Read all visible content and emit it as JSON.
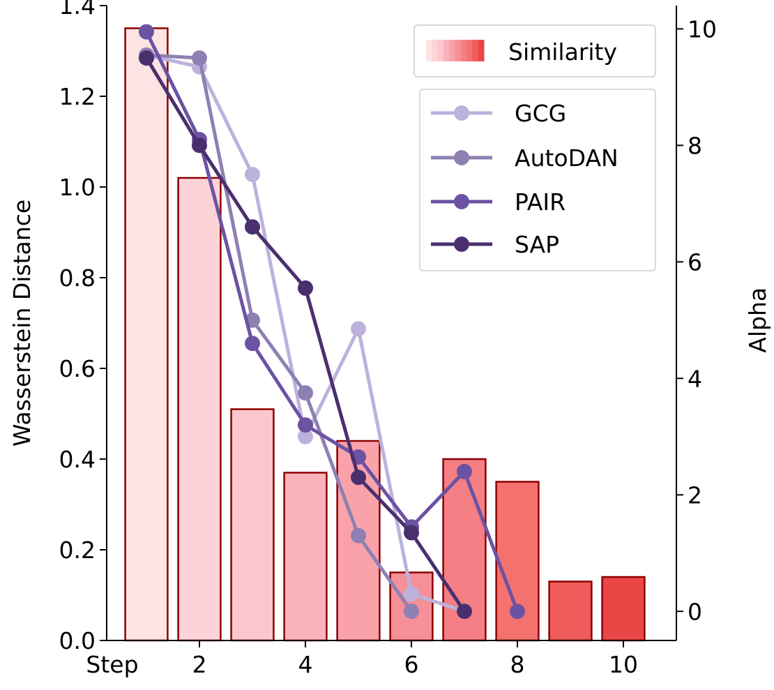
{
  "chart_data": {
    "type": "bar",
    "xlabel_inline": "Step",
    "ylabel": "Wasserstein Distance",
    "ylabel_right": "Alpha",
    "xlim": [
      0.25,
      11.0
    ],
    "ylim": [
      0.0,
      1.4
    ],
    "ylim_right": [
      -0.5,
      10.4
    ],
    "x_ticks": [
      2,
      4,
      6,
      8,
      10
    ],
    "y_ticks": [
      0.0,
      0.2,
      0.4,
      0.6,
      0.8,
      1.0,
      1.2,
      1.4
    ],
    "y_ticks_right": [
      0,
      2,
      4,
      6,
      8,
      10
    ],
    "bars": {
      "name": "Similarity",
      "x": [
        1,
        2,
        3,
        4,
        5,
        6,
        7,
        8,
        9,
        10
      ],
      "values": [
        1.35,
        1.02,
        0.51,
        0.37,
        0.44,
        0.15,
        0.4,
        0.35,
        0.13,
        0.14
      ],
      "colors": [
        "#fde3e3",
        "#fcd4d8",
        "#fcc7cd",
        "#fab3bb",
        "#f9a2aa",
        "#f68f98",
        "#f47f85",
        "#f3726f",
        "#ef5c5c",
        "#ea4646"
      ],
      "edge_color": "#8b0000"
    },
    "series": [
      {
        "name": "GCG",
        "color": "#bcb2dc",
        "x": [
          1,
          2,
          3,
          4,
          5,
          6,
          7
        ],
        "values": [
          9.55,
          9.35,
          7.5,
          3.0,
          4.85,
          0.3,
          0.0
        ]
      },
      {
        "name": "AutoDAN",
        "color": "#8e80b2",
        "x": [
          1,
          2,
          3,
          4,
          5,
          6
        ],
        "values": [
          9.55,
          9.5,
          5.0,
          3.75,
          1.3,
          0.0
        ]
      },
      {
        "name": "PAIR",
        "color": "#6c52a3",
        "x": [
          1,
          2,
          3,
          4,
          5,
          6,
          7,
          8
        ],
        "values": [
          9.95,
          8.1,
          4.6,
          3.2,
          2.65,
          1.45,
          2.4,
          0.0
        ]
      },
      {
        "name": "SAP",
        "color": "#4a2f6e",
        "x": [
          1,
          2,
          3,
          4,
          5,
          6,
          7
        ],
        "values": [
          9.5,
          8.0,
          6.6,
          5.55,
          2.3,
          1.35,
          0.0
        ]
      }
    ],
    "legend_placement": "top-right"
  }
}
